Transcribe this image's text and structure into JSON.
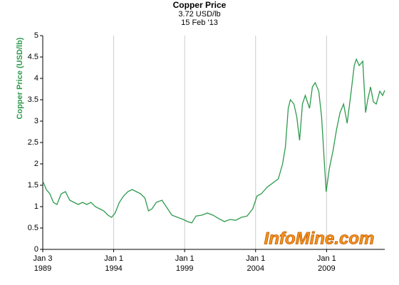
{
  "chart_data": {
    "type": "line",
    "title": "Copper Price",
    "subtitle": "3.72 USD/lb",
    "date": "15 Feb '13",
    "y_label": "Copper Price (USD/lb)",
    "watermark": "InfoMine.com",
    "x": [
      1989.0,
      1989.25,
      1989.5,
      1989.75,
      1990.0,
      1990.3,
      1990.6,
      1990.9,
      1991.2,
      1991.5,
      1991.8,
      1992.1,
      1992.4,
      1992.7,
      1993.0,
      1993.3,
      1993.6,
      1993.85,
      1994.1,
      1994.4,
      1994.7,
      1995.0,
      1995.3,
      1995.6,
      1995.9,
      1996.2,
      1996.45,
      1996.7,
      1997.0,
      1997.4,
      1997.8,
      1998.1,
      1998.5,
      1998.9,
      1999.2,
      1999.5,
      1999.8,
      2000.2,
      2000.6,
      2001.0,
      2001.4,
      2001.8,
      2002.2,
      2002.6,
      2003.0,
      2003.4,
      2003.8,
      2004.1,
      2004.4,
      2004.8,
      2005.2,
      2005.6,
      2005.9,
      2006.1,
      2006.3,
      2006.45,
      2006.7,
      2006.9,
      2007.1,
      2007.3,
      2007.5,
      2007.8,
      2008.0,
      2008.2,
      2008.45,
      2008.65,
      2008.85,
      2008.97,
      2009.2,
      2009.45,
      2009.7,
      2009.95,
      2010.2,
      2010.45,
      2010.7,
      2010.95,
      2011.1,
      2011.3,
      2011.55,
      2011.75,
      2011.9,
      2012.1,
      2012.3,
      2012.5,
      2012.75,
      2012.95,
      2013.1
    ],
    "series": [
      {
        "name": "Copper Price",
        "color": "#2e9a4e",
        "values": [
          1.6,
          1.4,
          1.3,
          1.1,
          1.05,
          1.3,
          1.35,
          1.15,
          1.1,
          1.05,
          1.1,
          1.05,
          1.1,
          1.0,
          0.95,
          0.9,
          0.8,
          0.75,
          0.85,
          1.1,
          1.25,
          1.35,
          1.4,
          1.35,
          1.3,
          1.2,
          0.9,
          0.95,
          1.1,
          1.15,
          0.95,
          0.8,
          0.75,
          0.7,
          0.65,
          0.62,
          0.78,
          0.8,
          0.85,
          0.8,
          0.72,
          0.65,
          0.7,
          0.68,
          0.75,
          0.78,
          0.95,
          1.25,
          1.3,
          1.45,
          1.55,
          1.65,
          2.0,
          2.4,
          3.3,
          3.5,
          3.4,
          3.1,
          2.55,
          3.4,
          3.6,
          3.3,
          3.8,
          3.9,
          3.7,
          3.1,
          2.0,
          1.35,
          1.9,
          2.3,
          2.8,
          3.2,
          3.4,
          2.95,
          3.6,
          4.3,
          4.45,
          4.3,
          4.4,
          3.2,
          3.5,
          3.8,
          3.45,
          3.4,
          3.7,
          3.6,
          3.72
        ]
      }
    ],
    "xlim": [
      1989.0,
      2013.1
    ],
    "xticks": [
      {
        "value": 1989.0,
        "label": [
          "Jan 3",
          "1989"
        ]
      },
      {
        "value": 1994.0,
        "label": [
          "Jan 1",
          "1994"
        ]
      },
      {
        "value": 1999.0,
        "label": [
          "Jan 1",
          "1999"
        ]
      },
      {
        "value": 2004.0,
        "label": [
          "Jan 1",
          "2004"
        ]
      },
      {
        "value": 2009.0,
        "label": [
          "Jan 1",
          "2009"
        ]
      }
    ],
    "ylim": [
      0,
      5
    ],
    "yticks": [
      0,
      0.5,
      1,
      1.5,
      2,
      2.5,
      3,
      3.5,
      4,
      4.5,
      5
    ],
    "grid": "x"
  }
}
